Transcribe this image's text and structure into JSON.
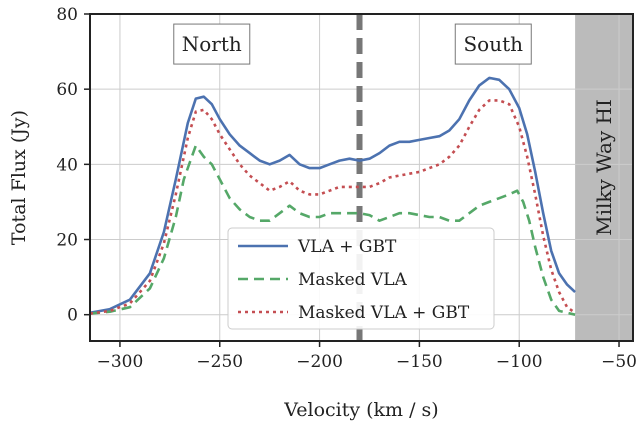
{
  "chart_data": {
    "type": "line",
    "xlabel": "Velocity (km / s)",
    "ylabel": "Total Flux (Jy)",
    "xlim": [
      -315,
      -43
    ],
    "ylim": [
      -7,
      80
    ],
    "xticks": [
      -300,
      -250,
      -200,
      -150,
      -100,
      -50
    ],
    "yticks": [
      0,
      20,
      40,
      60,
      80
    ],
    "grid": true,
    "legend_position": "lower-center",
    "series": [
      {
        "name": "VLA + GBT",
        "color": "#4C72B0",
        "style": "solid",
        "x": [
          -315,
          -305,
          -295,
          -285,
          -278,
          -272,
          -266,
          -262,
          -258,
          -254,
          -250,
          -245,
          -240,
          -235,
          -230,
          -225,
          -220,
          -215,
          -210,
          -205,
          -200,
          -195,
          -190,
          -185,
          -180,
          -175,
          -170,
          -165,
          -160,
          -155,
          -150,
          -145,
          -140,
          -135,
          -130,
          -125,
          -120,
          -115,
          -110,
          -105,
          -100,
          -96,
          -92,
          -88,
          -84,
          -80,
          -76,
          -72
        ],
        "y": [
          0.5,
          1.5,
          4,
          11,
          22,
          36,
          51,
          57.5,
          58,
          56,
          52,
          48,
          45,
          43,
          41,
          40,
          41,
          42.5,
          40,
          39,
          39,
          40,
          41,
          41.5,
          41,
          41.5,
          43,
          45,
          46,
          46,
          46.5,
          47,
          47.5,
          49,
          52,
          57,
          61,
          63,
          62.5,
          60,
          55,
          48,
          38,
          27,
          17,
          11,
          8,
          6
        ]
      },
      {
        "name": "Masked VLA",
        "color": "#55A868",
        "style": "dashed",
        "x": [
          -315,
          -305,
          -295,
          -285,
          -278,
          -272,
          -268,
          -264,
          -262,
          -258,
          -254,
          -250,
          -245,
          -240,
          -235,
          -230,
          -225,
          -220,
          -215,
          -210,
          -205,
          -200,
          -195,
          -190,
          -185,
          -180,
          -175,
          -170,
          -165,
          -160,
          -155,
          -150,
          -145,
          -140,
          -135,
          -130,
          -125,
          -120,
          -115,
          -110,
          -105,
          -101,
          -98,
          -95,
          -92,
          -88,
          -84,
          -80,
          -76,
          -72
        ],
        "y": [
          0.3,
          0.8,
          2,
          7,
          15,
          26,
          36,
          42,
          45,
          42,
          40,
          36,
          31,
          28,
          26,
          25,
          25,
          27,
          29,
          27,
          26,
          26,
          27,
          27,
          27,
          27,
          26.5,
          25,
          26,
          27,
          27,
          26.5,
          26,
          26,
          25,
          25,
          27,
          29,
          30,
          31,
          32,
          33,
          30,
          25,
          18,
          10,
          4,
          1,
          0.5,
          0
        ]
      },
      {
        "name": "Masked VLA + GBT",
        "color": "#C44E52",
        "style": "dotted",
        "x": [
          -315,
          -305,
          -295,
          -285,
          -278,
          -272,
          -266,
          -262,
          -258,
          -254,
          -250,
          -245,
          -240,
          -235,
          -230,
          -225,
          -220,
          -215,
          -210,
          -205,
          -200,
          -195,
          -190,
          -185,
          -180,
          -175,
          -170,
          -165,
          -160,
          -155,
          -150,
          -145,
          -140,
          -135,
          -130,
          -125,
          -120,
          -115,
          -110,
          -105,
          -100,
          -96,
          -92,
          -88,
          -84,
          -80,
          -76,
          -72
        ],
        "y": [
          0.3,
          1,
          3,
          9,
          19,
          32,
          47,
          54,
          54.5,
          52,
          48,
          44,
          40,
          37,
          35,
          33,
          34,
          35.5,
          33,
          32,
          32,
          33,
          34,
          34,
          34,
          34,
          35,
          36.5,
          37,
          37.5,
          38,
          39,
          40,
          42,
          45,
          50,
          54.5,
          57,
          57,
          56,
          50,
          42,
          32,
          21,
          12,
          6,
          2,
          0.5
        ]
      }
    ],
    "vertical_line": {
      "x": -180,
      "color": "#777777",
      "style": "dashed"
    },
    "shaded_region": {
      "x_from": -72,
      "x_to": -43,
      "label": "Milky Way HI",
      "color": "#bbbbbb"
    },
    "annotations": [
      {
        "text": "North",
        "x": -254,
        "y": 72
      },
      {
        "text": "South",
        "x": -113,
        "y": 72
      }
    ]
  }
}
